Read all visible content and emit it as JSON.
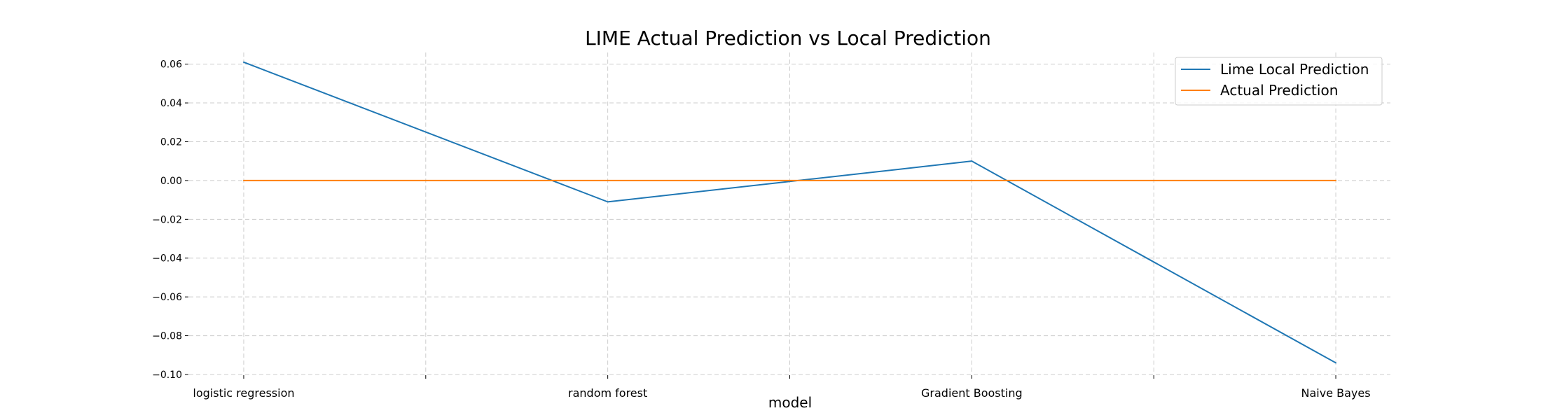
{
  "chart_data": {
    "type": "line",
    "title": "LIME Actual Prediction vs Local Prediction",
    "xlabel": "model",
    "ylabel": "",
    "categories": [
      "logistic regression",
      "random forest",
      "Gradient Boosting",
      "Naive Bayes"
    ],
    "x": [
      0,
      1,
      2,
      3
    ],
    "xlim": [
      -0.15,
      3.15
    ],
    "ylim": [
      -0.1,
      0.066
    ],
    "yticks": [
      -0.1,
      -0.08,
      -0.06,
      -0.04,
      -0.02,
      0.0,
      0.02,
      0.04,
      0.06
    ],
    "ytick_labels": [
      "−0.10",
      "−0.08",
      "−0.06",
      "−0.04",
      "−0.02",
      "0.00",
      "0.02",
      "0.04",
      "0.06"
    ],
    "xticks": [
      0,
      0.5,
      1,
      1.5,
      2,
      2.5,
      3
    ],
    "grid": true,
    "legend_position": "top-right",
    "series": [
      {
        "name": "Lime Local Prediction",
        "color": "#1f77b4",
        "values": [
          0.061,
          -0.011,
          0.01,
          -0.094
        ]
      },
      {
        "name": "Actual Prediction",
        "color": "#ff7f0e",
        "values": [
          0.0,
          0.0,
          0.0,
          0.0
        ]
      }
    ]
  }
}
